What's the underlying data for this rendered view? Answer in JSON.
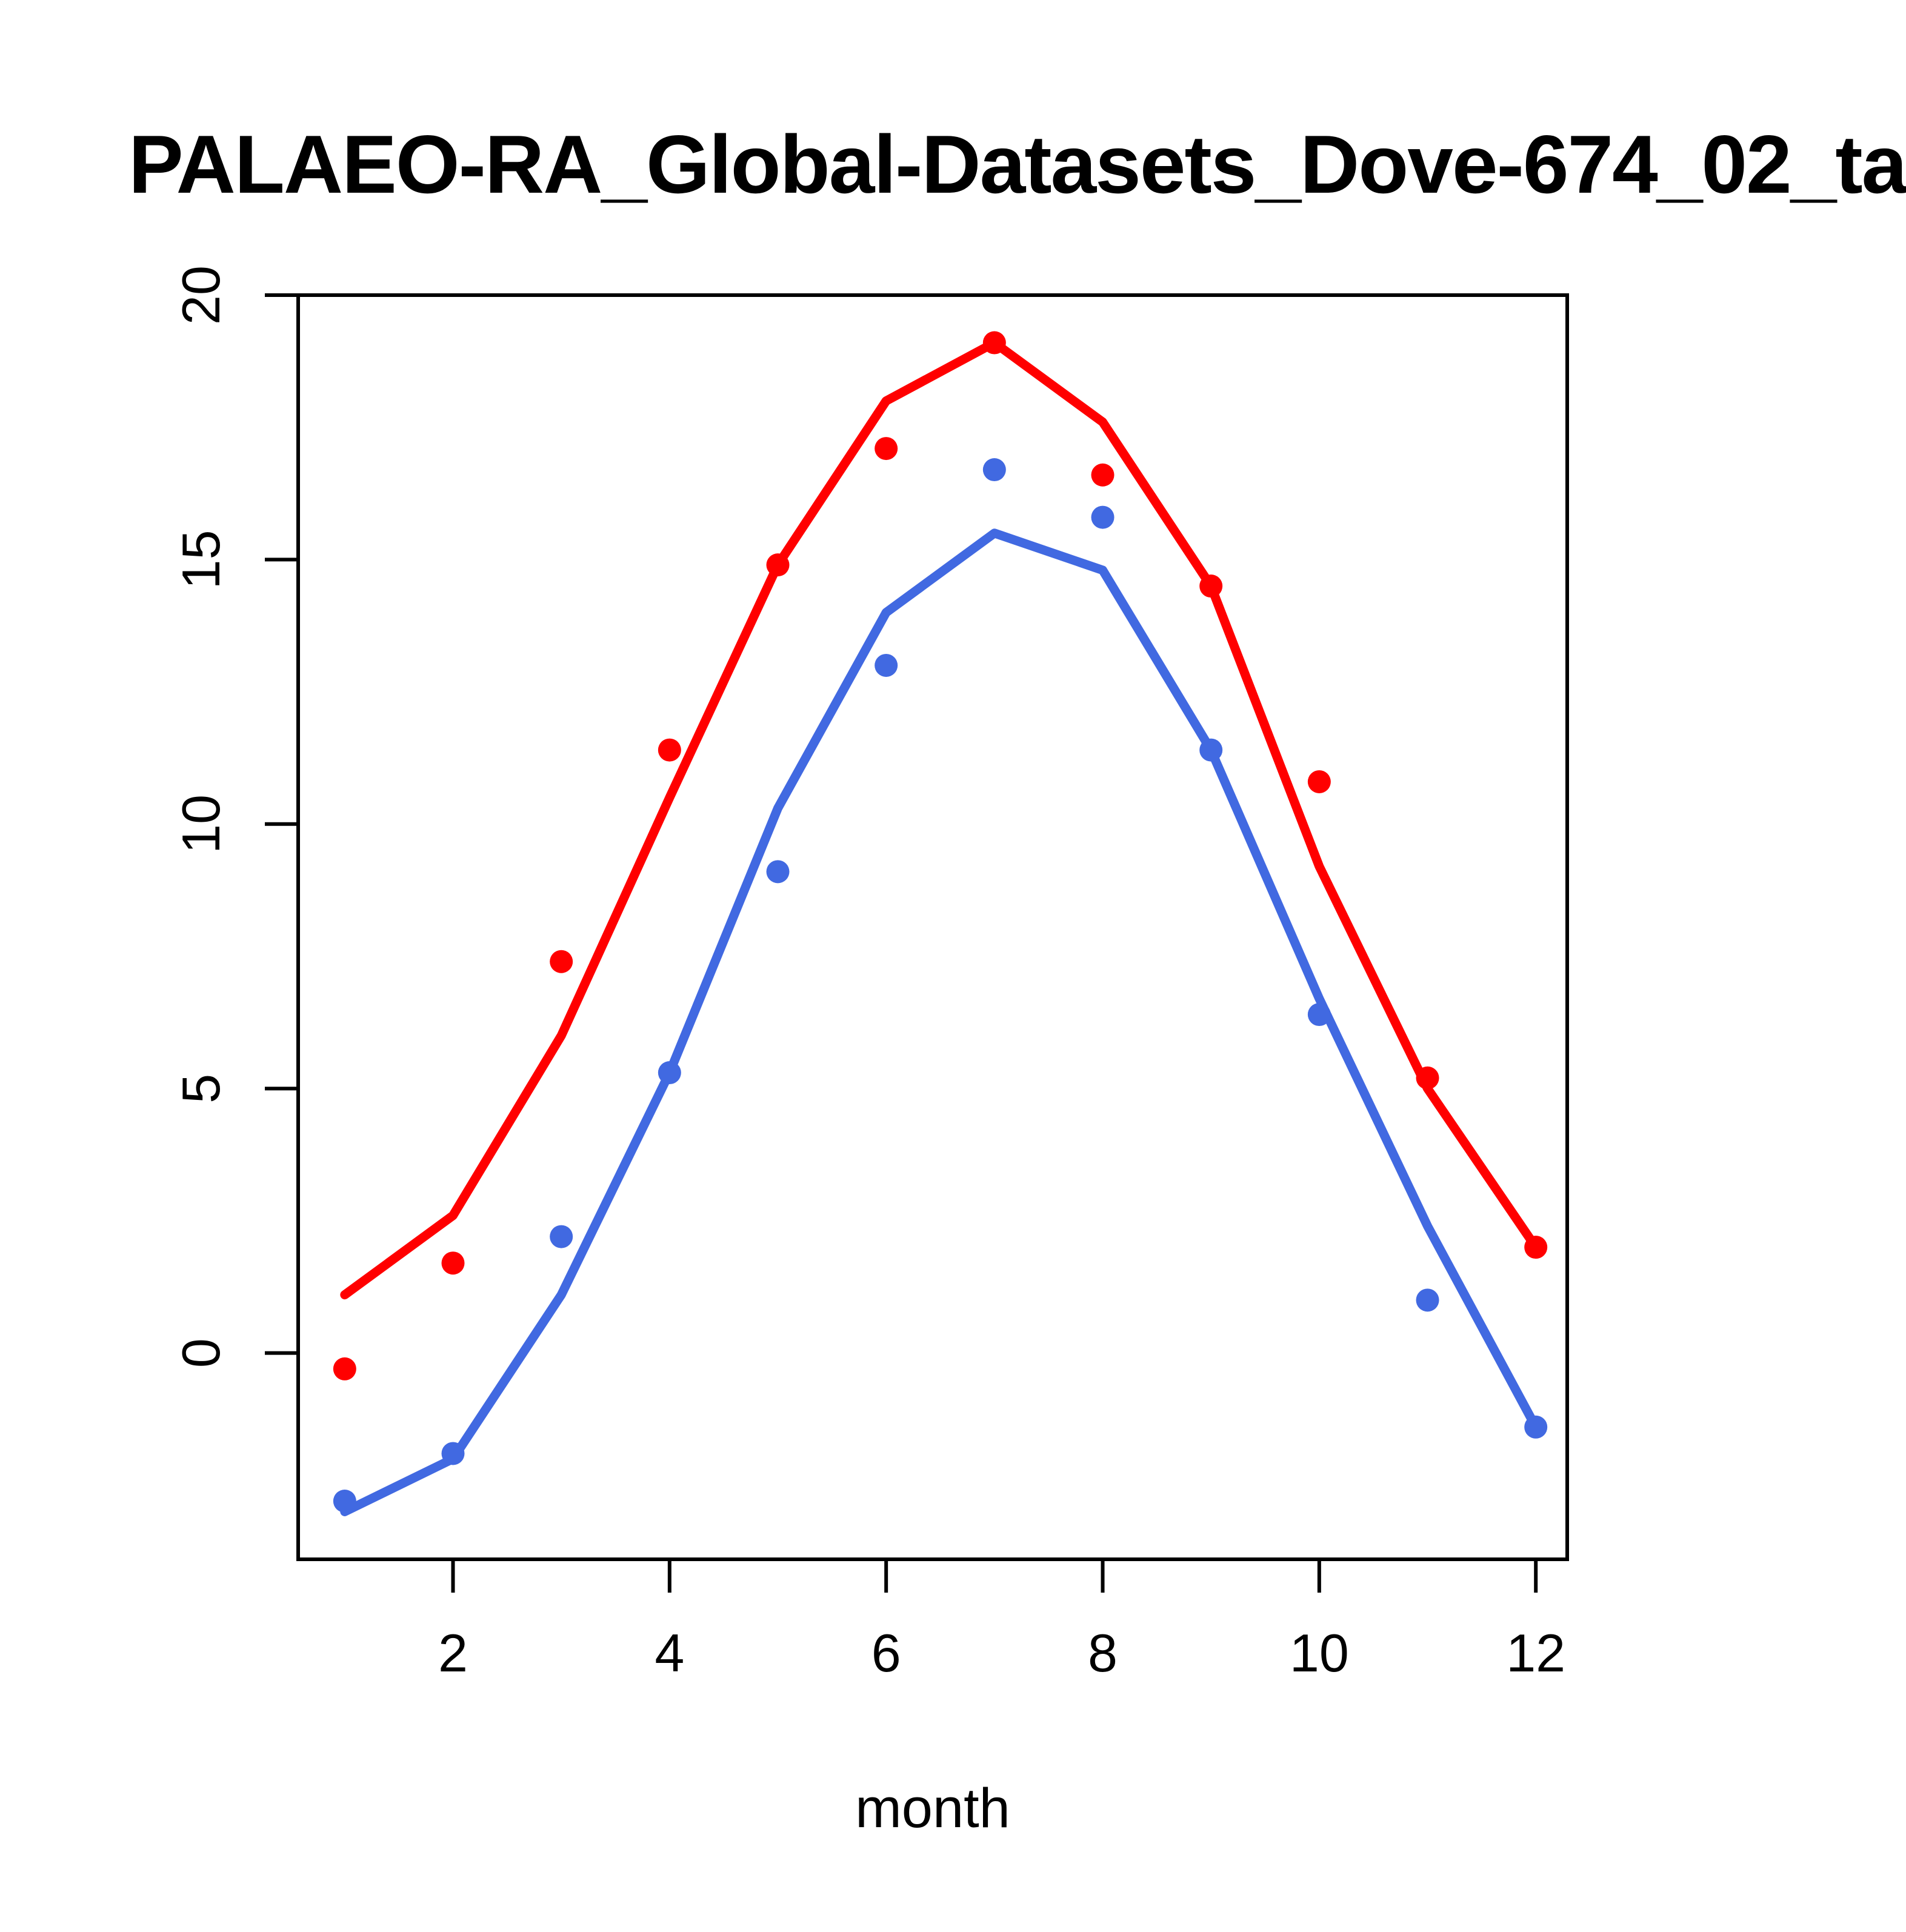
{
  "chart_data": {
    "type": "line",
    "title": "PALAEO-RA_Global-Datasets_Dove-674_02_ta",
    "xlabel": "month",
    "ylabel": "",
    "x": [
      1,
      2,
      3,
      4,
      5,
      6,
      7,
      8,
      9,
      10,
      11,
      12
    ],
    "xlim": [
      0.57,
      12.29
    ],
    "ylim": [
      -3.9,
      20.0
    ],
    "xticks": [
      2,
      4,
      6,
      8,
      10,
      12
    ],
    "yticks": [
      0,
      5,
      10,
      15,
      20
    ],
    "grid": false,
    "legend": "none",
    "colors": {
      "red": "#ff0000",
      "blue": "#4169e1",
      "axis": "#000000"
    },
    "series": [
      {
        "name": "red-line-model",
        "color": "#ff0000",
        "style": "line",
        "values": [
          1.1,
          2.6,
          6.0,
          10.5,
          14.9,
          18.0,
          19.1,
          17.6,
          14.5,
          9.2,
          5.0,
          2.0
        ]
      },
      {
        "name": "red-points-observed",
        "color": "#ff0000",
        "style": "points",
        "values": [
          -0.3,
          1.7,
          7.4,
          11.4,
          14.9,
          17.1,
          19.1,
          16.6,
          14.5,
          10.8,
          5.2,
          2.0
        ]
      },
      {
        "name": "blue-line-model",
        "color": "#4169e1",
        "style": "line",
        "values": [
          -3.0,
          -2.0,
          1.1,
          5.3,
          10.3,
          14.0,
          15.5,
          14.8,
          11.4,
          6.7,
          2.4,
          -1.4
        ]
      },
      {
        "name": "blue-points-observed",
        "color": "#4169e1",
        "style": "points",
        "values": [
          -2.8,
          -1.9,
          2.2,
          5.3,
          9.1,
          13.0,
          16.7,
          15.8,
          11.4,
          6.4,
          1.0,
          -1.4
        ]
      }
    ]
  }
}
